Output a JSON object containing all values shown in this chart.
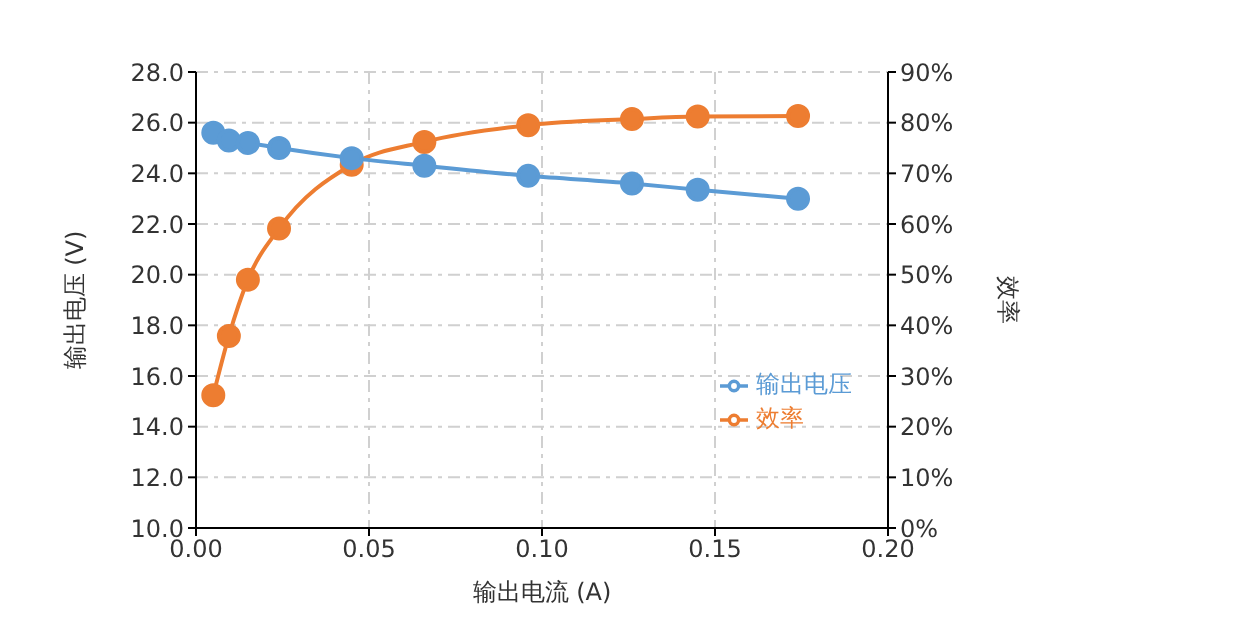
{
  "chart_data": {
    "type": "line",
    "xlabel": "输出电流 (A)",
    "ylabel": "输出电压 (V)",
    "y2label": "效率",
    "x": [
      0.005,
      0.0095,
      0.015,
      0.024,
      0.045,
      0.066,
      0.096,
      0.126,
      0.145,
      0.174
    ],
    "series": [
      {
        "name": "输出电压",
        "color": "#5b9bd5",
        "values": [
          25.6,
          25.3,
          25.2,
          25.0,
          24.6,
          24.3,
          23.9,
          23.6,
          23.35,
          23.0
        ]
      },
      {
        "name": "效率",
        "color": "#ed7d31",
        "axis": "y2",
        "values": [
          26.2,
          37.9,
          49,
          59.1,
          71.7,
          76.2,
          79.5,
          80.7,
          81.2,
          81.3
        ]
      }
    ],
    "xlim": [
      0,
      0.2
    ],
    "xticks": [
      {
        "value": 0,
        "label": "0.00"
      },
      {
        "value": 0.05,
        "label": "0.05"
      },
      {
        "value": 0.1,
        "label": "0.10"
      },
      {
        "value": 0.15,
        "label": "0.15"
      },
      {
        "value": 0.2,
        "label": "0.20"
      }
    ],
    "ylim": [
      10,
      28
    ],
    "yticks": [
      {
        "value": 10,
        "label": "10.0"
      },
      {
        "value": 12,
        "label": "12.0"
      },
      {
        "value": 14,
        "label": "14.0"
      },
      {
        "value": 16,
        "label": "16.0"
      },
      {
        "value": 18,
        "label": "18.0"
      },
      {
        "value": 20,
        "label": "20.0"
      },
      {
        "value": 22,
        "label": "22.0"
      },
      {
        "value": 24,
        "label": "24.0"
      },
      {
        "value": 26,
        "label": "26.0"
      },
      {
        "value": 28,
        "label": "28.0"
      }
    ],
    "y2lim": [
      0,
      90
    ],
    "y2ticks": [
      {
        "value": 0,
        "label": "0%"
      },
      {
        "value": 10,
        "label": "10%"
      },
      {
        "value": 20,
        "label": "20%"
      },
      {
        "value": 30,
        "label": "30%"
      },
      {
        "value": 40,
        "label": "40%"
      },
      {
        "value": 50,
        "label": "50%"
      },
      {
        "value": 60,
        "label": "60%"
      },
      {
        "value": 70,
        "label": "70%"
      },
      {
        "value": 80,
        "label": "80%"
      },
      {
        "value": 90,
        "label": "90%"
      }
    ],
    "grid": true,
    "legend": "right",
    "marker": "circle",
    "line_style": "solid"
  }
}
